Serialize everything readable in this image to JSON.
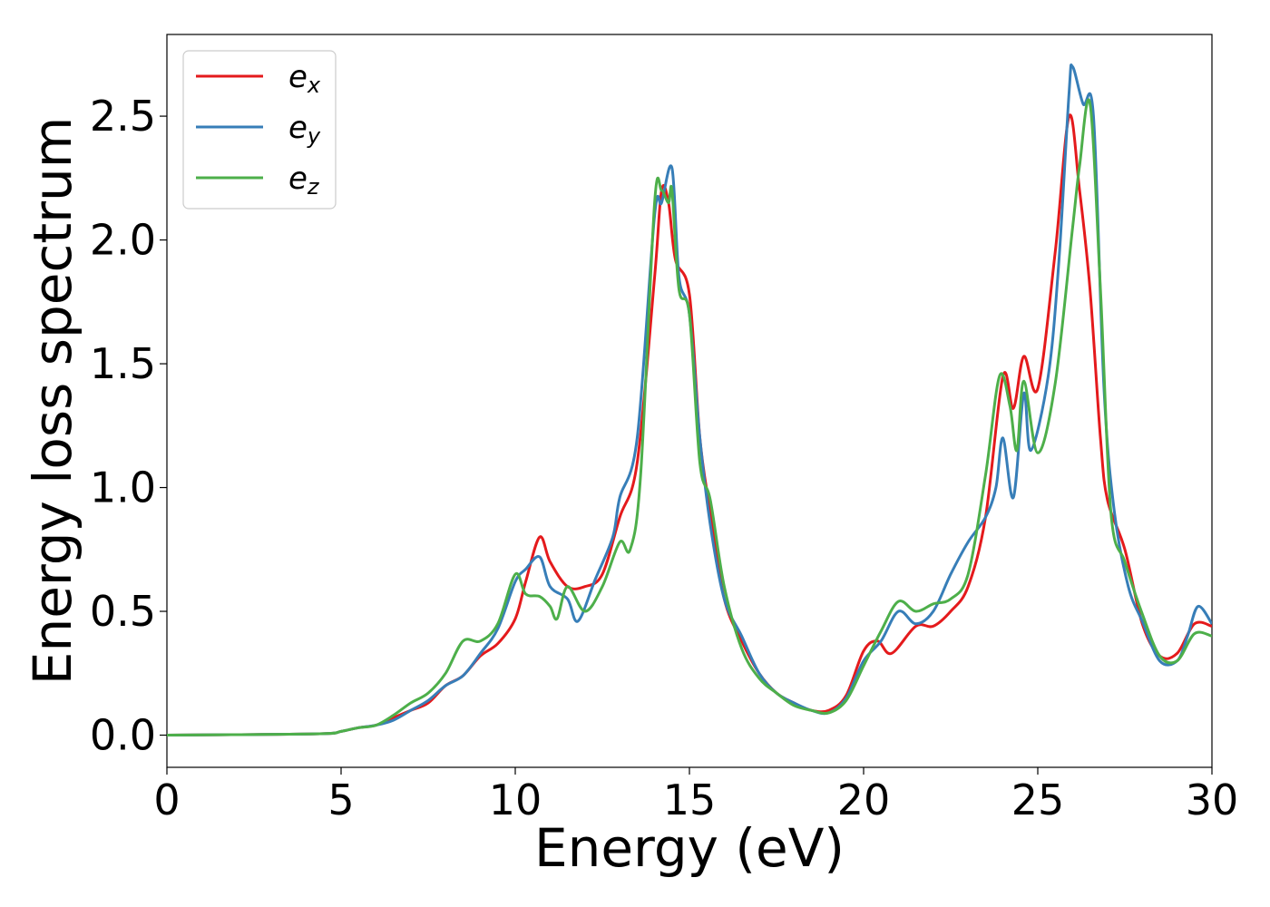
{
  "chart_data": {
    "type": "line",
    "title": "",
    "xlabel": "Energy (eV)",
    "ylabel": "Energy loss spectrum",
    "xlim": [
      0,
      30
    ],
    "ylim": [
      -0.13,
      2.83
    ],
    "xticks": [
      0,
      5,
      10,
      15,
      20,
      25,
      30
    ],
    "xtick_labels": [
      "0",
      "5",
      "10",
      "15",
      "20",
      "25",
      "30"
    ],
    "yticks": [
      0.0,
      0.5,
      1.0,
      1.5,
      2.0,
      2.5
    ],
    "ytick_labels": [
      "0.0",
      "0.5",
      "1.0",
      "1.5",
      "2.0",
      "2.5"
    ],
    "grid": false,
    "legend_position": "top-left",
    "series": [
      {
        "name": "e_x",
        "legend_base": "e",
        "legend_sub": "x",
        "color": "#e41a1c",
        "points": [
          [
            0,
            0.0
          ],
          [
            2,
            0.002
          ],
          [
            4.5,
            0.006
          ],
          [
            5,
            0.015
          ],
          [
            5.5,
            0.03
          ],
          [
            6,
            0.04
          ],
          [
            6.5,
            0.07
          ],
          [
            7,
            0.1
          ],
          [
            7.5,
            0.13
          ],
          [
            8,
            0.2
          ],
          [
            8.5,
            0.24
          ],
          [
            9,
            0.32
          ],
          [
            9.5,
            0.37
          ],
          [
            10,
            0.47
          ],
          [
            10.3,
            0.62
          ],
          [
            10.7,
            0.8
          ],
          [
            11,
            0.7
          ],
          [
            11.5,
            0.6
          ],
          [
            12,
            0.6
          ],
          [
            12.5,
            0.65
          ],
          [
            13,
            0.88
          ],
          [
            13.5,
            1.1
          ],
          [
            14,
            1.85
          ],
          [
            14.2,
            2.2
          ],
          [
            14.4,
            2.15
          ],
          [
            14.6,
            1.92
          ],
          [
            15,
            1.78
          ],
          [
            15.3,
            1.2
          ],
          [
            15.6,
            0.9
          ],
          [
            16,
            0.55
          ],
          [
            16.5,
            0.38
          ],
          [
            17,
            0.25
          ],
          [
            17.5,
            0.17
          ],
          [
            18,
            0.13
          ],
          [
            18.5,
            0.1
          ],
          [
            19,
            0.1
          ],
          [
            19.5,
            0.16
          ],
          [
            20,
            0.34
          ],
          [
            20.4,
            0.38
          ],
          [
            20.8,
            0.33
          ],
          [
            21.5,
            0.44
          ],
          [
            22,
            0.44
          ],
          [
            22.5,
            0.5
          ],
          [
            23,
            0.6
          ],
          [
            23.5,
            0.88
          ],
          [
            24,
            1.45
          ],
          [
            24.3,
            1.32
          ],
          [
            24.6,
            1.53
          ],
          [
            25,
            1.4
          ],
          [
            25.5,
            1.95
          ],
          [
            25.9,
            2.5
          ],
          [
            26.2,
            2.2
          ],
          [
            26.5,
            1.8
          ],
          [
            26.8,
            1.2
          ],
          [
            27,
            0.95
          ],
          [
            27.5,
            0.75
          ],
          [
            28,
            0.45
          ],
          [
            28.5,
            0.32
          ],
          [
            29,
            0.33
          ],
          [
            29.5,
            0.45
          ],
          [
            30,
            0.44
          ]
        ]
      },
      {
        "name": "e_y",
        "legend_base": "e",
        "legend_sub": "y",
        "color": "#377eb8",
        "points": [
          [
            0,
            0.0
          ],
          [
            2,
            0.002
          ],
          [
            4.5,
            0.006
          ],
          [
            5,
            0.015
          ],
          [
            5.5,
            0.03
          ],
          [
            6,
            0.04
          ],
          [
            6.5,
            0.06
          ],
          [
            7,
            0.1
          ],
          [
            7.5,
            0.14
          ],
          [
            8,
            0.2
          ],
          [
            8.5,
            0.24
          ],
          [
            9,
            0.33
          ],
          [
            9.5,
            0.43
          ],
          [
            10,
            0.62
          ],
          [
            10.3,
            0.67
          ],
          [
            10.7,
            0.72
          ],
          [
            11,
            0.6
          ],
          [
            11.5,
            0.55
          ],
          [
            11.8,
            0.46
          ],
          [
            12.3,
            0.63
          ],
          [
            12.8,
            0.8
          ],
          [
            13,
            0.96
          ],
          [
            13.5,
            1.2
          ],
          [
            14,
            2.1
          ],
          [
            14.2,
            2.15
          ],
          [
            14.5,
            2.29
          ],
          [
            14.7,
            1.85
          ],
          [
            15,
            1.7
          ],
          [
            15.3,
            1.2
          ],
          [
            15.6,
            0.85
          ],
          [
            16,
            0.55
          ],
          [
            16.5,
            0.4
          ],
          [
            17,
            0.25
          ],
          [
            17.5,
            0.17
          ],
          [
            18,
            0.13
          ],
          [
            18.5,
            0.1
          ],
          [
            19,
            0.09
          ],
          [
            19.5,
            0.15
          ],
          [
            20,
            0.3
          ],
          [
            20.5,
            0.38
          ],
          [
            21,
            0.5
          ],
          [
            21.5,
            0.45
          ],
          [
            22,
            0.5
          ],
          [
            22.5,
            0.65
          ],
          [
            23,
            0.78
          ],
          [
            23.5,
            0.88
          ],
          [
            23.8,
            1.0
          ],
          [
            24,
            1.2
          ],
          [
            24.3,
            0.96
          ],
          [
            24.6,
            1.38
          ],
          [
            24.8,
            1.15
          ],
          [
            25.3,
            1.45
          ],
          [
            25.6,
            1.9
          ],
          [
            25.9,
            2.6
          ],
          [
            26,
            2.7
          ],
          [
            26.3,
            2.55
          ],
          [
            26.6,
            2.5
          ],
          [
            26.9,
            1.4
          ],
          [
            27.2,
            0.9
          ],
          [
            27.6,
            0.6
          ],
          [
            28,
            0.46
          ],
          [
            28.5,
            0.3
          ],
          [
            29,
            0.3
          ],
          [
            29.3,
            0.4
          ],
          [
            29.6,
            0.52
          ],
          [
            30,
            0.45
          ]
        ]
      },
      {
        "name": "e_z",
        "legend_base": "e",
        "legend_sub": "z",
        "color": "#4daf4a",
        "points": [
          [
            0,
            0.0
          ],
          [
            2,
            0.002
          ],
          [
            4.5,
            0.006
          ],
          [
            5,
            0.015
          ],
          [
            5.5,
            0.03
          ],
          [
            6,
            0.04
          ],
          [
            6.5,
            0.08
          ],
          [
            7,
            0.13
          ],
          [
            7.5,
            0.17
          ],
          [
            8,
            0.25
          ],
          [
            8.5,
            0.38
          ],
          [
            9,
            0.38
          ],
          [
            9.5,
            0.45
          ],
          [
            10,
            0.65
          ],
          [
            10.3,
            0.57
          ],
          [
            10.7,
            0.56
          ],
          [
            11,
            0.52
          ],
          [
            11.2,
            0.47
          ],
          [
            11.5,
            0.6
          ],
          [
            12,
            0.5
          ],
          [
            12.5,
            0.6
          ],
          [
            13,
            0.78
          ],
          [
            13.3,
            0.75
          ],
          [
            13.6,
            1.05
          ],
          [
            14,
            2.15
          ],
          [
            14.2,
            2.2
          ],
          [
            14.4,
            2.15
          ],
          [
            14.5,
            2.2
          ],
          [
            14.7,
            1.8
          ],
          [
            15,
            1.7
          ],
          [
            15.3,
            1.1
          ],
          [
            15.6,
            0.95
          ],
          [
            16,
            0.6
          ],
          [
            16.5,
            0.35
          ],
          [
            17,
            0.23
          ],
          [
            17.5,
            0.17
          ],
          [
            18,
            0.12
          ],
          [
            18.5,
            0.1
          ],
          [
            19,
            0.09
          ],
          [
            19.5,
            0.14
          ],
          [
            20,
            0.28
          ],
          [
            20.5,
            0.42
          ],
          [
            21,
            0.54
          ],
          [
            21.5,
            0.5
          ],
          [
            22,
            0.53
          ],
          [
            22.5,
            0.55
          ],
          [
            23,
            0.65
          ],
          [
            23.5,
            1.05
          ],
          [
            23.9,
            1.45
          ],
          [
            24.2,
            1.33
          ],
          [
            24.4,
            1.15
          ],
          [
            24.6,
            1.43
          ],
          [
            25,
            1.14
          ],
          [
            25.5,
            1.42
          ],
          [
            26,
            2.05
          ],
          [
            26.2,
            2.3
          ],
          [
            26.5,
            2.55
          ],
          [
            26.8,
            1.8
          ],
          [
            27.1,
            0.9
          ],
          [
            27.5,
            0.7
          ],
          [
            28,
            0.49
          ],
          [
            28.5,
            0.32
          ],
          [
            29,
            0.3
          ],
          [
            29.5,
            0.41
          ],
          [
            30,
            0.4
          ]
        ]
      }
    ]
  }
}
